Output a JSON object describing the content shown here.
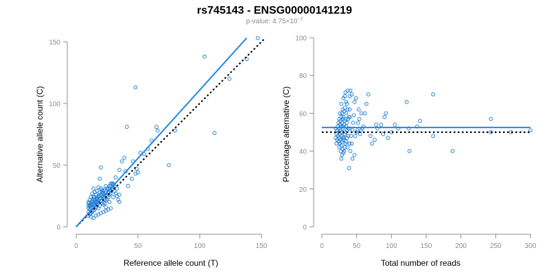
{
  "title": "rs745143 - ENSG00000141219",
  "subtitle": {
    "prefix": "p-value: 4.75×10",
    "exponent": "−7"
  },
  "colors": {
    "points": "#2b83d4",
    "fit_line": "#1e88e5",
    "reference_line": "#000000"
  },
  "chart_data": [
    {
      "type": "scatter",
      "xlabel": "Reference allele count (T)",
      "ylabel": "Alternative allele count (C)",
      "xlim": [
        0,
        150
      ],
      "ylim": [
        0,
        150
      ],
      "xticks": [
        0,
        50,
        100,
        150
      ],
      "yticks": [
        0,
        50,
        100,
        150
      ],
      "fit_line": {
        "x": [
          0,
          138
        ],
        "y": [
          0,
          153
        ]
      },
      "reference_line": {
        "x": [
          0,
          153
        ],
        "y": [
          0,
          153
        ],
        "style": "dotted"
      },
      "points": [
        [
          147,
          153
        ],
        [
          104,
          138
        ],
        [
          124,
          120
        ],
        [
          138,
          136
        ],
        [
          48,
          113
        ],
        [
          112,
          76
        ],
        [
          41,
          81
        ],
        [
          65,
          81
        ],
        [
          66,
          78
        ],
        [
          80,
          78
        ],
        [
          75,
          50
        ],
        [
          42,
          33
        ],
        [
          45,
          39
        ],
        [
          48,
          43
        ],
        [
          49,
          47
        ],
        [
          50,
          44
        ],
        [
          52,
          60
        ],
        [
          55,
          59
        ],
        [
          58,
          63
        ],
        [
          61,
          70
        ],
        [
          46,
          53
        ],
        [
          37,
          53
        ],
        [
          39,
          56
        ],
        [
          40,
          45
        ],
        [
          35,
          46
        ],
        [
          32,
          40
        ],
        [
          30,
          34
        ],
        [
          29,
          35
        ],
        [
          28,
          33
        ],
        [
          27,
          31
        ],
        [
          26,
          28
        ],
        [
          25,
          25
        ],
        [
          24,
          27
        ],
        [
          23,
          22
        ],
        [
          22,
          24
        ],
        [
          20,
          21
        ],
        [
          19,
          23
        ],
        [
          17,
          20
        ],
        [
          16,
          19
        ],
        [
          15,
          17
        ],
        [
          14,
          18
        ],
        [
          13,
          16
        ],
        [
          12,
          15
        ],
        [
          11,
          14
        ],
        [
          10,
          12
        ],
        [
          18,
          15
        ],
        [
          19,
          17
        ],
        [
          21,
          19
        ],
        [
          22,
          18
        ],
        [
          23,
          19
        ],
        [
          24,
          21
        ],
        [
          25,
          22
        ],
        [
          26,
          24
        ],
        [
          27,
          26
        ],
        [
          28,
          27
        ],
        [
          29,
          30
        ],
        [
          30,
          31
        ],
        [
          31,
          29
        ],
        [
          33,
          31
        ],
        [
          35,
          26
        ],
        [
          24,
          16
        ],
        [
          27,
          20
        ],
        [
          30,
          24
        ],
        [
          19,
          39
        ],
        [
          20,
          48
        ],
        [
          17,
          29
        ],
        [
          18,
          32
        ],
        [
          16,
          26
        ],
        [
          15,
          28
        ],
        [
          14,
          31
        ],
        [
          13,
          27
        ],
        [
          12,
          24
        ],
        [
          11,
          22
        ],
        [
          10,
          20
        ],
        [
          13,
          20
        ],
        [
          15,
          22
        ],
        [
          17,
          23
        ],
        [
          14,
          24
        ],
        [
          16,
          23
        ],
        [
          18,
          25
        ],
        [
          21,
          27
        ],
        [
          23,
          30
        ],
        [
          25,
          31
        ],
        [
          27,
          33
        ],
        [
          28,
          35
        ],
        [
          29,
          35
        ],
        [
          30,
          35
        ],
        [
          31,
          33
        ],
        [
          29,
          31
        ],
        [
          32,
          27
        ],
        [
          33,
          25
        ],
        [
          34,
          22
        ],
        [
          35,
          20
        ],
        [
          28,
          29
        ],
        [
          26,
          31
        ],
        [
          24,
          33
        ],
        [
          22,
          27
        ],
        [
          21,
          30
        ],
        [
          20,
          31
        ],
        [
          19,
          28
        ],
        [
          18,
          21
        ],
        [
          17,
          18
        ],
        [
          16,
          16
        ],
        [
          15,
          14
        ],
        [
          14,
          13
        ],
        [
          13,
          12
        ],
        [
          12,
          11
        ],
        [
          11,
          10
        ],
        [
          10,
          9
        ],
        [
          12,
          8
        ],
        [
          14,
          7
        ],
        [
          16,
          9
        ],
        [
          18,
          10
        ],
        [
          20,
          11
        ],
        [
          22,
          12
        ],
        [
          24,
          13
        ],
        [
          26,
          14
        ],
        [
          28,
          15
        ],
        [
          11,
          17
        ],
        [
          12,
          19
        ],
        [
          13,
          21
        ],
        [
          14,
          22
        ],
        [
          15,
          24
        ],
        [
          10,
          15
        ],
        [
          10,
          17
        ],
        [
          10,
          19
        ],
        [
          11,
          18
        ],
        [
          12,
          17
        ],
        [
          13,
          18
        ],
        [
          14,
          19
        ],
        [
          15,
          20
        ],
        [
          16,
          21
        ],
        [
          17,
          22
        ],
        [
          18,
          24
        ],
        [
          19,
          25
        ],
        [
          20,
          26
        ],
        [
          21,
          28
        ],
        [
          22,
          29
        ]
      ]
    },
    {
      "type": "scatter",
      "xlabel": "Total number of reads",
      "ylabel": "Percentage alternative (C)",
      "xlim": [
        0,
        300
      ],
      "ylim": [
        0,
        100
      ],
      "xticks": [
        0,
        50,
        100,
        150,
        200,
        250,
        300
      ],
      "yticks": [
        0,
        20,
        40,
        60,
        80,
        100
      ],
      "fit_line": {
        "x": [
          0,
          300
        ],
        "y": [
          52.5,
          52.5
        ]
      },
      "reference_line": {
        "x": [
          0,
          300
        ],
        "y": [
          50,
          50
        ],
        "style": "dotted"
      },
      "points": [
        [
          300,
          51
        ],
        [
          243,
          57
        ],
        [
          243,
          50
        ],
        [
          272,
          50
        ],
        [
          160,
          70
        ],
        [
          188,
          40
        ],
        [
          160,
          48
        ],
        [
          141,
          56
        ],
        [
          137,
          53
        ],
        [
          125,
          52
        ],
        [
          126,
          40
        ],
        [
          122,
          66
        ],
        [
          110,
          52
        ],
        [
          105,
          54
        ],
        [
          100,
          50
        ],
        [
          95,
          47
        ],
        [
          92,
          60
        ],
        [
          90,
          58
        ],
        [
          88,
          49
        ],
        [
          85,
          54
        ],
        [
          80,
          52
        ],
        [
          78,
          54
        ],
        [
          76,
          46
        ],
        [
          72,
          44
        ],
        [
          70,
          48
        ],
        [
          67,
          70
        ],
        [
          64,
          65
        ],
        [
          62,
          60
        ],
        [
          60,
          53
        ],
        [
          58,
          52
        ],
        [
          57,
          60
        ],
        [
          56,
          51
        ],
        [
          55,
          49
        ],
        [
          54,
          57
        ],
        [
          53,
          62
        ],
        [
          52,
          55
        ],
        [
          51,
          51
        ],
        [
          50,
          50
        ],
        [
          49,
          68
        ],
        [
          48,
          48
        ],
        [
          47,
          66
        ],
        [
          46,
          59
        ],
        [
          45,
          55
        ],
        [
          44,
          51
        ],
        [
          43,
          44
        ],
        [
          42,
          48
        ],
        [
          41,
          72
        ],
        [
          40,
          62
        ],
        [
          40,
          58
        ],
        [
          40,
          52
        ],
        [
          40,
          44
        ],
        [
          39,
          58
        ],
        [
          39,
          31
        ],
        [
          38,
          57
        ],
        [
          38,
          52
        ],
        [
          38,
          48
        ],
        [
          37,
          72
        ],
        [
          37,
          62
        ],
        [
          36,
          55
        ],
        [
          36,
          51
        ],
        [
          36,
          47
        ],
        [
          35,
          66
        ],
        [
          35,
          60
        ],
        [
          35,
          53
        ],
        [
          35,
          45
        ],
        [
          34,
          71
        ],
        [
          34,
          57
        ],
        [
          34,
          50
        ],
        [
          33,
          63
        ],
        [
          33,
          56
        ],
        [
          33,
          49
        ],
        [
          33,
          42
        ],
        [
          32,
          61
        ],
        [
          32,
          54
        ],
        [
          32,
          47
        ],
        [
          32,
          40
        ],
        [
          31,
          58
        ],
        [
          31,
          53
        ],
        [
          31,
          46
        ],
        [
          31,
          39
        ],
        [
          30,
          62
        ],
        [
          30,
          57
        ],
        [
          30,
          52
        ],
        [
          30,
          47
        ],
        [
          30,
          41
        ],
        [
          29,
          60
        ],
        [
          29,
          55
        ],
        [
          29,
          50
        ],
        [
          29,
          45
        ],
        [
          29,
          38
        ],
        [
          28,
          65
        ],
        [
          28,
          58
        ],
        [
          28,
          53
        ],
        [
          28,
          48
        ],
        [
          28,
          43
        ],
        [
          28,
          36
        ],
        [
          27,
          56
        ],
        [
          27,
          51
        ],
        [
          27,
          46
        ],
        [
          27,
          40
        ],
        [
          26,
          60
        ],
        [
          26,
          54
        ],
        [
          26,
          49
        ],
        [
          26,
          44
        ],
        [
          25,
          57
        ],
        [
          25,
          52
        ],
        [
          25,
          47
        ],
        [
          25,
          42
        ],
        [
          24,
          55
        ],
        [
          24,
          50
        ],
        [
          24,
          45
        ],
        [
          23,
          53
        ],
        [
          23,
          48
        ],
        [
          22,
          51
        ],
        [
          22,
          46
        ],
        [
          21,
          49
        ],
        [
          21,
          44
        ],
        [
          20,
          52
        ],
        [
          20,
          47
        ],
        [
          31,
          68
        ],
        [
          33,
          69
        ],
        [
          36,
          65
        ],
        [
          40,
          69
        ],
        [
          43,
          70
        ],
        [
          34,
          44
        ],
        [
          37,
          42
        ],
        [
          41,
          40
        ],
        [
          44,
          36
        ],
        [
          47,
          38
        ]
      ]
    }
  ]
}
